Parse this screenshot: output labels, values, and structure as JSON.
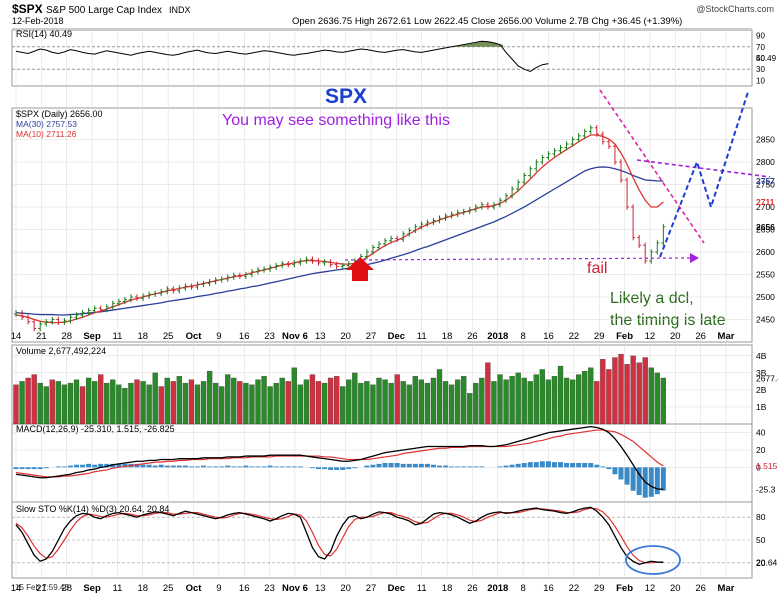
{
  "header": {
    "symbol": "$SPX",
    "name": "S&P 500 Large Cap Index",
    "exchange": "INDX",
    "date": "12-Feb-2018",
    "ohlc": "Open 2636.75  High 2672.61  Low 2622.45  Close 2656.00  Volume 2.7B  Chg +36.45 (+1.39%)",
    "watermark": "@StockCharts.com",
    "status": "15 Feb 7:59.43"
  },
  "colors": {
    "up": "#1a7a1a",
    "down": "#cc2233",
    "ma30": "#2a3f9a",
    "ma10": "#e03030",
    "rsi_fill": "#5a7a3a",
    "macd_hist": "#3a8ac8",
    "annotation_blue": "#1a3fd0",
    "annotation_purple": "#a020e0",
    "annotation_pink": "#e020a0",
    "grid": "#d8d8d8"
  },
  "annotations": {
    "title": "SPX",
    "subtitle": "You may see something like this",
    "fail": "fail",
    "dcl_line1": "Likely a dcl,",
    "dcl_line2": "the timing is late"
  },
  "chart_data": [
    {
      "type": "line",
      "panel": "rsi",
      "legend": "RSI(14) 40.49",
      "ylim": [
        0,
        100
      ],
      "y_ticks": [
        "90",
        "70",
        "50",
        "30",
        "10"
      ],
      "last_label": "40.49",
      "values": [
        62,
        60,
        58,
        62,
        66,
        64,
        60,
        58,
        61,
        65,
        63,
        60,
        58,
        57,
        60,
        63,
        61,
        59,
        57,
        55,
        58,
        60,
        62,
        60,
        58,
        56,
        55,
        57,
        60,
        62,
        64,
        61,
        59,
        58,
        60,
        62,
        60,
        58,
        57,
        59,
        61,
        63,
        62,
        60,
        58,
        56,
        55,
        57,
        58,
        60,
        62,
        64,
        63,
        61,
        60,
        62,
        64,
        66,
        65,
        63,
        61,
        60,
        62,
        64,
        65,
        63,
        61,
        60,
        62,
        64,
        66,
        68,
        70,
        72,
        74,
        76,
        78,
        80,
        79,
        77,
        74,
        60,
        48,
        36,
        30,
        26,
        33,
        38,
        40
      ]
    },
    {
      "type": "candlestick",
      "panel": "price",
      "legend": "$SPX (Daily) 2656.00",
      "series": [
        {
          "name": "MA(30) 2757.53"
        },
        {
          "name": "MA(10) 2711.26"
        }
      ],
      "ylim": [
        2400,
        2920
      ],
      "y_ticks": [
        "2850",
        "2800",
        "2750",
        "2700",
        "2650",
        "2600",
        "2550",
        "2500",
        "2450"
      ],
      "price_labels": [
        "2757",
        "2711",
        "2656"
      ],
      "x_labels": [
        "14",
        "21",
        "28",
        "Sep",
        "11",
        "18",
        "25",
        "Oct",
        "9",
        "16",
        "23",
        "Nov 6",
        "13",
        "20",
        "27",
        "Dec",
        "11",
        "18",
        "26",
        "2018",
        "8",
        "16",
        "22",
        "29",
        "Feb",
        "12",
        "20",
        "26",
        "Mar"
      ],
      "close": [
        2465,
        2455,
        2445,
        2430,
        2440,
        2445,
        2450,
        2444,
        2447,
        2455,
        2460,
        2465,
        2470,
        2475,
        2472,
        2478,
        2486,
        2490,
        2494,
        2500,
        2497,
        2502,
        2506,
        2508,
        2512,
        2518,
        2514,
        2520,
        2524,
        2522,
        2528,
        2530,
        2534,
        2538,
        2540,
        2544,
        2548,
        2546,
        2550,
        2556,
        2560,
        2562,
        2566,
        2570,
        2574,
        2572,
        2576,
        2580,
        2584,
        2580,
        2576,
        2578,
        2572,
        2568,
        2570,
        2574,
        2580,
        2590,
        2600,
        2610,
        2618,
        2625,
        2630,
        2628,
        2640,
        2648,
        2656,
        2662,
        2666,
        2670,
        2675,
        2680,
        2684,
        2688,
        2690,
        2694,
        2700,
        2705,
        2700,
        2705,
        2715,
        2725,
        2740,
        2755,
        2770,
        2785,
        2800,
        2810,
        2818,
        2825,
        2832,
        2840,
        2850,
        2858,
        2868,
        2876,
        2862,
        2845,
        2835,
        2800,
        2760,
        2700,
        2632,
        2615,
        2580,
        2600,
        2620,
        2656
      ],
      "ma30": [
        2465,
        2464,
        2463,
        2462,
        2461,
        2461,
        2461,
        2460,
        2460,
        2461,
        2462,
        2463,
        2464,
        2466,
        2467,
        2469,
        2471,
        2473,
        2475,
        2477,
        2479,
        2481,
        2483,
        2485,
        2487,
        2490,
        2492,
        2494,
        2496,
        2498,
        2501,
        2503,
        2505,
        2508,
        2510,
        2513,
        2515,
        2518,
        2520,
        2523,
        2525,
        2528,
        2531,
        2534,
        2537,
        2540,
        2543,
        2546,
        2549,
        2552,
        2554,
        2556,
        2558,
        2560,
        2562,
        2564,
        2566,
        2569,
        2572,
        2575,
        2578,
        2582,
        2586,
        2590,
        2594,
        2598,
        2603,
        2608,
        2612,
        2617,
        2622,
        2627,
        2632,
        2637,
        2642,
        2647,
        2652,
        2657,
        2662,
        2667,
        2673,
        2679,
        2686,
        2693,
        2700,
        2708,
        2716,
        2724,
        2732,
        2740,
        2748,
        2756,
        2764,
        2772,
        2780,
        2785,
        2788,
        2789,
        2788,
        2785,
        2781,
        2776,
        2770,
        2765,
        2760,
        2759,
        2758,
        2757.53
      ],
      "ma10": [
        2460,
        2458,
        2455,
        2450,
        2446,
        2444,
        2443,
        2443,
        2444,
        2447,
        2451,
        2455,
        2460,
        2465,
        2469,
        2473,
        2478,
        2483,
        2488,
        2493,
        2497,
        2500,
        2504,
        2507,
        2510,
        2514,
        2516,
        2519,
        2522,
        2524,
        2527,
        2530,
        2533,
        2536,
        2539,
        2542,
        2545,
        2547,
        2550,
        2554,
        2557,
        2560,
        2564,
        2567,
        2571,
        2573,
        2576,
        2579,
        2581,
        2581,
        2580,
        2579,
        2577,
        2575,
        2573,
        2573,
        2575,
        2580,
        2588,
        2597,
        2606,
        2614,
        2621,
        2626,
        2632,
        2640,
        2648,
        2655,
        2661,
        2666,
        2671,
        2676,
        2680,
        2684,
        2688,
        2692,
        2696,
        2700,
        2701,
        2703,
        2708,
        2715,
        2725,
        2736,
        2749,
        2762,
        2776,
        2789,
        2800,
        2810,
        2819,
        2828,
        2836,
        2845,
        2853,
        2860,
        2860,
        2857,
        2851,
        2840,
        2820,
        2795,
        2765,
        2738,
        2715,
        2700,
        2700,
        2711.26
      ]
    },
    {
      "type": "bar",
      "panel": "volume",
      "legend": "Volume 2,677,492,224",
      "y_ticks": [
        "4B",
        "3B",
        "2B",
        "1B"
      ],
      "last_label": "2677.4",
      "values": [
        2.3,
        2.5,
        2.7,
        2.9,
        2.4,
        2.2,
        2.6,
        2.5,
        2.3,
        2.4,
        2.6,
        2.2,
        2.7,
        2.5,
        2.9,
        2.4,
        2.6,
        2.3,
        2.1,
        2.4,
        2.6,
        2.5,
        2.3,
        3.0,
        2.2,
        2.7,
        2.5,
        2.8,
        2.4,
        2.6,
        2.3,
        2.5,
        3.1,
        2.4,
        2.2,
        2.9,
        2.7,
        2.5,
        2.4,
        2.3,
        2.6,
        2.8,
        2.2,
        2.4,
        2.7,
        2.5,
        3.3,
        2.3,
        2.6,
        2.9,
        2.5,
        2.4,
        2.7,
        2.8,
        2.2,
        2.6,
        3.0,
        2.4,
        2.5,
        2.3,
        2.7,
        2.6,
        2.4,
        2.9,
        2.5,
        2.3,
        2.8,
        2.6,
        2.4,
        2.7,
        3.2,
        2.5,
        2.3,
        2.6,
        2.8,
        1.8,
        2.4,
        2.7,
        3.6,
        2.5,
        2.9,
        2.6,
        2.8,
        3.0,
        2.7,
        2.5,
        2.9,
        3.2,
        2.6,
        2.8,
        3.4,
        2.7,
        2.6,
        2.9,
        3.1,
        3.3,
        2.5,
        3.8,
        3.2,
        3.9,
        4.1,
        3.5,
        4.0,
        3.6,
        3.9,
        3.3,
        3.0,
        2.7
      ],
      "up_days": [
        0,
        1,
        0,
        0,
        1,
        1,
        0,
        1,
        1,
        1,
        1,
        0,
        1,
        1,
        0,
        1,
        1,
        1,
        1,
        1,
        0,
        1,
        1,
        1,
        0,
        1,
        0,
        1,
        1,
        0,
        1,
        1,
        1,
        1,
        1,
        1,
        1,
        0,
        1,
        1,
        1,
        1,
        1,
        1,
        1,
        0,
        1,
        1,
        1,
        0,
        0,
        1,
        0,
        0,
        1,
        1,
        1,
        1,
        1,
        1,
        1,
        1,
        1,
        0,
        1,
        1,
        1,
        1,
        1,
        1,
        1,
        1,
        1,
        1,
        1,
        1,
        1,
        1,
        0,
        1,
        1,
        1,
        1,
        1,
        1,
        1,
        1,
        1,
        1,
        1,
        1,
        1,
        1,
        1,
        1,
        1,
        0,
        0,
        0,
        0,
        0,
        0,
        0,
        0,
        0,
        1,
        1,
        1
      ]
    },
    {
      "type": "line",
      "panel": "macd",
      "legend": "MACD(12,26,9) -25.310, 1.515, -26.825",
      "y_ticks": [
        "40",
        "20",
        "0"
      ],
      "price_labels": [
        "1.515",
        "-25.3"
      ],
      "macd": [
        -8,
        -9,
        -10,
        -11,
        -12,
        -12,
        -11,
        -10,
        -9,
        -8,
        -6,
        -5,
        -3,
        -2,
        0,
        1,
        3,
        4,
        5,
        6,
        7,
        7,
        8,
        8,
        9,
        9,
        9,
        10,
        10,
        10,
        10,
        11,
        11,
        11,
        11,
        12,
        12,
        12,
        13,
        13,
        13,
        13,
        14,
        14,
        14,
        14,
        14,
        14,
        13,
        12,
        11,
        10,
        9,
        8,
        7,
        7,
        8,
        9,
        11,
        13,
        15,
        17,
        18,
        19,
        20,
        21,
        22,
        23,
        24,
        24,
        24,
        24,
        24,
        24,
        24,
        25,
        25,
        25,
        24,
        24,
        25,
        26,
        28,
        30,
        32,
        34,
        36,
        38,
        40,
        41,
        42,
        43,
        44,
        45,
        46,
        47,
        46,
        44,
        40,
        33,
        24,
        14,
        3,
        -8,
        -17,
        -22,
        -25,
        -25.3
      ],
      "signal": [
        -6,
        -7,
        -8,
        -9,
        -10,
        -11,
        -11,
        -11,
        -10,
        -10,
        -9,
        -8,
        -7,
        -5,
        -4,
        -3,
        -1,
        0,
        1,
        2,
        3,
        4,
        5,
        6,
        6,
        7,
        7,
        8,
        8,
        9,
        9,
        9,
        10,
        10,
        10,
        10,
        11,
        11,
        11,
        12,
        12,
        12,
        12,
        13,
        13,
        13,
        13,
        13,
        13,
        13,
        13,
        12,
        12,
        11,
        10,
        9,
        9,
        9,
        9,
        10,
        11,
        12,
        13,
        14,
        16,
        17,
        18,
        19,
        20,
        21,
        22,
        22,
        23,
        23,
        23,
        24,
        24,
        24,
        24,
        24,
        24,
        24,
        25,
        26,
        27,
        28,
        30,
        31,
        33,
        35,
        36,
        38,
        39,
        40,
        41,
        42,
        43,
        43,
        42,
        41,
        38,
        34,
        30,
        24,
        18,
        12,
        6,
        1.515
      ],
      "histogram": [
        -2,
        -2,
        -2,
        -2,
        -2,
        -1,
        0,
        1,
        1,
        2,
        3,
        3,
        4,
        3,
        4,
        4,
        4,
        4,
        4,
        4,
        4,
        3,
        3,
        2,
        3,
        2,
        2,
        2,
        2,
        1,
        1,
        2,
        1,
        1,
        1,
        2,
        1,
        1,
        2,
        1,
        1,
        1,
        2,
        1,
        1,
        1,
        1,
        1,
        0,
        -1,
        -2,
        -2,
        -3,
        -3,
        -3,
        -2,
        -1,
        0,
        2,
        3,
        4,
        5,
        5,
        5,
        4,
        4,
        4,
        4,
        4,
        3,
        2,
        2,
        1,
        1,
        1,
        1,
        1,
        1,
        0,
        0,
        1,
        2,
        3,
        4,
        5,
        6,
        6,
        7,
        7,
        6,
        6,
        5,
        5,
        5,
        5,
        5,
        3,
        1,
        -2,
        -8,
        -14,
        -20,
        -27,
        -32,
        -35,
        -34,
        -31,
        -26.825
      ]
    },
    {
      "type": "line",
      "panel": "stochastic",
      "legend": "Slow STO %K(14) %D(3) 20.64, 20.84",
      "ylim": [
        0,
        100
      ],
      "y_ticks": [
        "80",
        "50",
        "20"
      ],
      "price_labels": [
        "20.64"
      ],
      "k": [
        70,
        60,
        45,
        30,
        22,
        25,
        35,
        50,
        65,
        75,
        82,
        85,
        84,
        80,
        78,
        82,
        85,
        86,
        84,
        82,
        80,
        83,
        85,
        87,
        86,
        84,
        82,
        85,
        88,
        86,
        84,
        82,
        80,
        78,
        80,
        83,
        85,
        86,
        84,
        82,
        80,
        78,
        75,
        78,
        82,
        85,
        84,
        80,
        60,
        40,
        28,
        25,
        35,
        55,
        70,
        80,
        82,
        78,
        80,
        84,
        87,
        86,
        84,
        80,
        78,
        75,
        70,
        72,
        78,
        84,
        86,
        85,
        83,
        80,
        76,
        72,
        75,
        80,
        84,
        86,
        87,
        85,
        86,
        88,
        90,
        91,
        92,
        90,
        89,
        88,
        86,
        85,
        87,
        90,
        92,
        93,
        88,
        80,
        70,
        55,
        40,
        28,
        22,
        18,
        20,
        22,
        21,
        20.64
      ],
      "d": [
        72,
        66,
        55,
        42,
        32,
        26,
        28,
        38,
        50,
        63,
        74,
        81,
        84,
        83,
        81,
        80,
        82,
        84,
        85,
        84,
        82,
        82,
        83,
        85,
        86,
        86,
        84,
        84,
        85,
        86,
        86,
        84,
        82,
        80,
        79,
        80,
        83,
        85,
        85,
        84,
        82,
        80,
        78,
        77,
        78,
        81,
        84,
        83,
        75,
        60,
        43,
        31,
        29,
        38,
        53,
        68,
        77,
        80,
        80,
        81,
        84,
        86,
        86,
        83,
        81,
        78,
        74,
        72,
        73,
        78,
        83,
        85,
        85,
        83,
        80,
        76,
        74,
        76,
        80,
        83,
        86,
        86,
        86,
        86,
        88,
        90,
        91,
        91,
        90,
        89,
        88,
        86,
        86,
        87,
        90,
        92,
        91,
        87,
        79,
        68,
        55,
        41,
        30,
        23,
        20,
        20,
        21,
        20.84
      ]
    }
  ]
}
